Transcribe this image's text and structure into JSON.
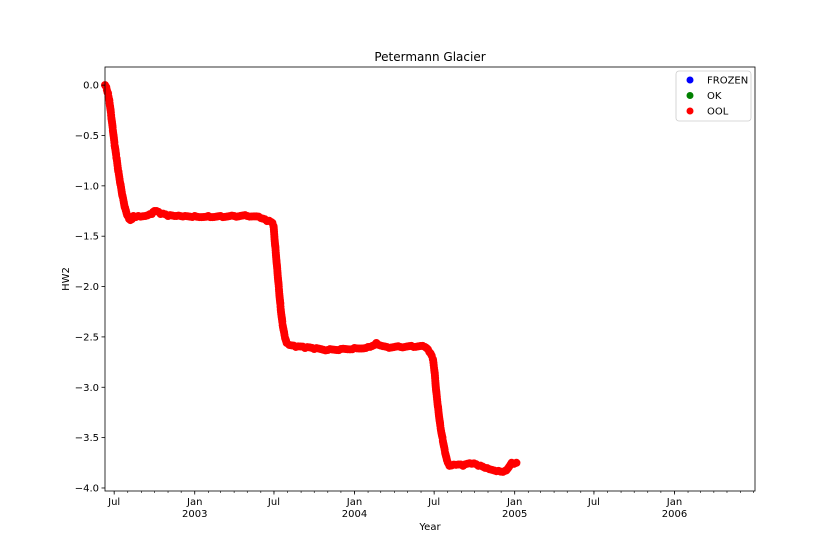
{
  "chart_data": {
    "type": "scatter",
    "title": "Petermann Glacier",
    "xlabel": "Year",
    "ylabel": "HW2",
    "xlim": [
      "2002-06-10",
      "2006-07-04"
    ],
    "ylim": [
      -4.03,
      0.18
    ],
    "x_ticks": [
      {
        "date": "2002-07-01",
        "label": "Jul",
        "sublabel": ""
      },
      {
        "date": "2003-01-01",
        "label": "Jan",
        "sublabel": "2003"
      },
      {
        "date": "2003-07-01",
        "label": "Jul",
        "sublabel": ""
      },
      {
        "date": "2004-01-01",
        "label": "Jan",
        "sublabel": "2004"
      },
      {
        "date": "2004-07-01",
        "label": "Jul",
        "sublabel": ""
      },
      {
        "date": "2005-01-01",
        "label": "Jan",
        "sublabel": "2005"
      },
      {
        "date": "2005-07-01",
        "label": "Jul",
        "sublabel": ""
      },
      {
        "date": "2006-01-01",
        "label": "Jan",
        "sublabel": "2006"
      }
    ],
    "y_ticks": [
      0.0,
      -0.5,
      -1.0,
      -1.5,
      -2.0,
      -2.5,
      -3.0,
      -3.5,
      -4.0
    ],
    "y_tick_labels": [
      "0.0",
      "−0.5",
      "−1.0",
      "−1.5",
      "−2.0",
      "−2.5",
      "−3.0",
      "−3.5",
      "−4.0"
    ],
    "grid": false,
    "legend_position": "top-right",
    "series": [
      {
        "name": "FROZEN",
        "color": "#0000ff",
        "points": []
      },
      {
        "name": "OK",
        "color": "#008000",
        "points": []
      },
      {
        "name": "OOL",
        "color": "#ff0000",
        "points": [
          [
            "2002-06-10",
            0.0
          ],
          [
            "2002-06-13",
            -0.02
          ],
          [
            "2002-06-17",
            -0.08
          ],
          [
            "2002-06-20",
            -0.15
          ],
          [
            "2002-06-24",
            -0.3
          ],
          [
            "2002-06-28",
            -0.45
          ],
          [
            "2002-07-02",
            -0.6
          ],
          [
            "2002-07-06",
            -0.72
          ],
          [
            "2002-07-10",
            -0.85
          ],
          [
            "2002-07-15",
            -0.98
          ],
          [
            "2002-07-20",
            -1.1
          ],
          [
            "2002-07-26",
            -1.22
          ],
          [
            "2002-08-01",
            -1.3
          ],
          [
            "2002-08-07",
            -1.34
          ],
          [
            "2002-08-14",
            -1.3
          ],
          [
            "2002-08-25",
            -1.3
          ],
          [
            "2002-09-10",
            -1.3
          ],
          [
            "2002-09-25",
            -1.28
          ],
          [
            "2002-10-01",
            -1.25
          ],
          [
            "2002-10-15",
            -1.28
          ],
          [
            "2002-11-01",
            -1.3
          ],
          [
            "2002-11-20",
            -1.3
          ],
          [
            "2002-12-10",
            -1.3
          ],
          [
            "2003-01-01",
            -1.3
          ],
          [
            "2003-02-01",
            -1.3
          ],
          [
            "2003-03-01",
            -1.3
          ],
          [
            "2003-04-01",
            -1.3
          ],
          [
            "2003-05-01",
            -1.3
          ],
          [
            "2003-06-01",
            -1.32
          ],
          [
            "2003-06-15",
            -1.35
          ],
          [
            "2003-06-25",
            -1.36
          ],
          [
            "2003-06-30",
            -1.4
          ],
          [
            "2003-07-04",
            -1.6
          ],
          [
            "2003-07-08",
            -1.8
          ],
          [
            "2003-07-12",
            -2.0
          ],
          [
            "2003-07-16",
            -2.2
          ],
          [
            "2003-07-20",
            -2.35
          ],
          [
            "2003-07-25",
            -2.48
          ],
          [
            "2003-07-30",
            -2.56
          ],
          [
            "2003-08-05",
            -2.58
          ],
          [
            "2003-08-20",
            -2.6
          ],
          [
            "2003-09-10",
            -2.61
          ],
          [
            "2003-10-01",
            -2.62
          ],
          [
            "2003-11-01",
            -2.63
          ],
          [
            "2003-12-01",
            -2.62
          ],
          [
            "2004-01-01",
            -2.61
          ],
          [
            "2004-02-01",
            -2.6
          ],
          [
            "2004-02-20",
            -2.56
          ],
          [
            "2004-03-15",
            -2.6
          ],
          [
            "2004-04-15",
            -2.6
          ],
          [
            "2004-05-15",
            -2.6
          ],
          [
            "2004-06-10",
            -2.6
          ],
          [
            "2004-06-20",
            -2.65
          ],
          [
            "2004-06-28",
            -2.72
          ],
          [
            "2004-07-02",
            -2.85
          ],
          [
            "2004-07-06",
            -3.05
          ],
          [
            "2004-07-10",
            -3.2
          ],
          [
            "2004-07-15",
            -3.38
          ],
          [
            "2004-07-20",
            -3.5
          ],
          [
            "2004-07-25",
            -3.62
          ],
          [
            "2004-07-30",
            -3.72
          ],
          [
            "2004-08-05",
            -3.78
          ],
          [
            "2004-08-20",
            -3.77
          ],
          [
            "2004-09-05",
            -3.78
          ],
          [
            "2004-09-25",
            -3.76
          ],
          [
            "2004-10-10",
            -3.78
          ],
          [
            "2004-10-25",
            -3.8
          ],
          [
            "2004-11-10",
            -3.82
          ],
          [
            "2004-11-25",
            -3.83
          ],
          [
            "2004-12-10",
            -3.83
          ],
          [
            "2004-12-25",
            -3.75
          ],
          [
            "2005-01-05",
            -3.75
          ]
        ]
      }
    ]
  }
}
